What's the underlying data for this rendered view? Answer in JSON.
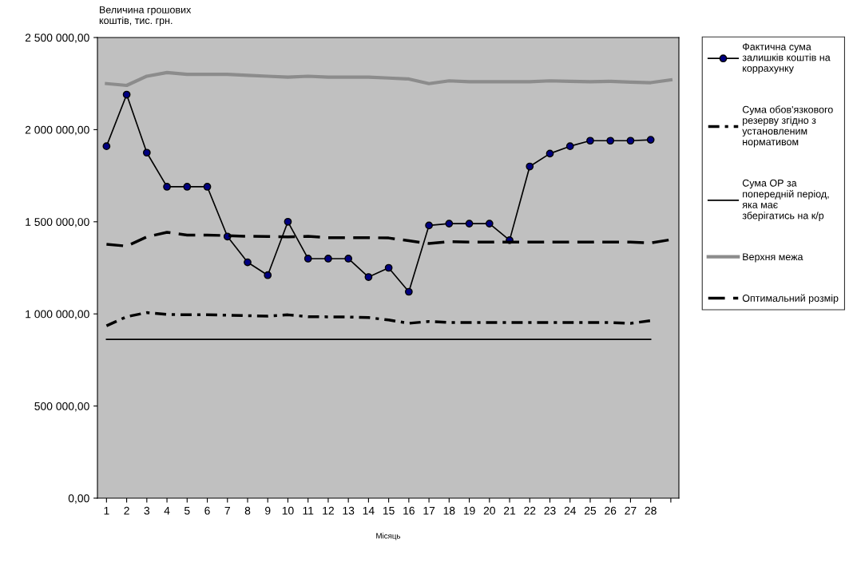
{
  "chart_data": {
    "type": "line",
    "ylabel": "Величина грошових коштів, тис. грн.",
    "xlabel": "Місяць",
    "categories": [
      "1",
      "2",
      "3",
      "4",
      "5",
      "6",
      "7",
      "8",
      "9",
      "10",
      "11",
      "12",
      "13",
      "14",
      "15",
      "16",
      "17",
      "18",
      "19",
      "20",
      "21",
      "22",
      "23",
      "24",
      "25",
      "26",
      "27",
      "28",
      null
    ],
    "ylim": [
      0,
      2500000
    ],
    "yticks": [
      {
        "value": 0,
        "label": "0,00"
      },
      {
        "value": 500000,
        "label": "500 000,00"
      },
      {
        "value": 1000000,
        "label": "1 000 000,00"
      },
      {
        "value": 1500000,
        "label": "1 500 000,00"
      },
      {
        "value": 2000000,
        "label": "2 000 000,00"
      },
      {
        "value": 2500000,
        "label": "2 500 000,00"
      }
    ],
    "grid": false,
    "legend": "right",
    "series": [
      {
        "name": "Фактична сума залишків коштів на коррахунку",
        "color": "#000080",
        "marker": "circle",
        "line_style": "solid",
        "values": [
          1910000,
          2190000,
          1875000,
          1690000,
          1690000,
          1690000,
          1420000,
          1280000,
          1210000,
          1500000,
          1300000,
          1300000,
          1300000,
          1200000,
          1250000,
          1120000,
          1480000,
          1490000,
          1490000,
          1490000,
          1400000,
          1800000,
          1870000,
          1910000,
          1940000,
          1940000,
          1940000,
          1945000,
          null
        ]
      },
      {
        "name": "Сума обов'язкового резерву згідно з установленим нормативом",
        "color": "#000000",
        "line_style": "dashdot",
        "values": [
          935000,
          985000,
          1007000,
          997000,
          995000,
          995000,
          993000,
          990000,
          988000,
          995000,
          985000,
          984000,
          983000,
          980000,
          967000,
          949000,
          959000,
          953000,
          953000,
          953000,
          953000,
          953000,
          953000,
          953000,
          953000,
          953000,
          949000,
          963000,
          null
        ]
      },
      {
        "name": "Сума ОР за попередній період, яка має зберігатись на к/р",
        "color": "#000000",
        "line_style": "solid",
        "values": [
          862000,
          862000,
          862000,
          862000,
          862000,
          862000,
          862000,
          862000,
          862000,
          862000,
          862000,
          862000,
          862000,
          862000,
          862000,
          862000,
          862000,
          862000,
          862000,
          862000,
          862000,
          862000,
          862000,
          862000,
          862000,
          862000,
          862000,
          862000,
          null
        ]
      },
      {
        "name": "Верхня межа",
        "color": "#8c8c8c",
        "line_style": "solid",
        "values": [
          2250000,
          2240000,
          2290000,
          2310000,
          2300000,
          2300000,
          2300000,
          2295000,
          2290000,
          2285000,
          2290000,
          2285000,
          2285000,
          2285000,
          2280000,
          2275000,
          2250000,
          2265000,
          2260000,
          2260000,
          2260000,
          2260000,
          2265000,
          2262000,
          2260000,
          2262000,
          2258000,
          2255000,
          2270000
        ]
      },
      {
        "name": "Оптимальний розмір",
        "color": "#000000",
        "line_style": "dashed",
        "values": [
          1378000,
          1368000,
          1418000,
          1443000,
          1428000,
          1428000,
          1425000,
          1421000,
          1420000,
          1418000,
          1421000,
          1414000,
          1414000,
          1414000,
          1412000,
          1397000,
          1382000,
          1392000,
          1390000,
          1390000,
          1390000,
          1390000,
          1390000,
          1390000,
          1390000,
          1390000,
          1390000,
          1385000,
          1403000
        ]
      }
    ]
  }
}
